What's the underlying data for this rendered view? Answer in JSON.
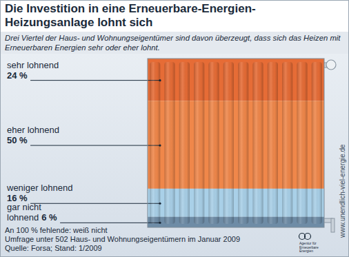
{
  "chart_data": {
    "type": "bar",
    "stacked": true,
    "data_labels": true,
    "tick_labels": false,
    "grid": false,
    "title": "Die Investition in eine Erneuerbare-Energien-Heizungsanlage lohnt sich",
    "subtitle": "Drei Viertel der Haus- und Wohnungseigentümer sind davon überzeugt, dass sich das Heizen mit Erneuerbaren Energien sehr oder eher lohnt.",
    "categories": [
      "sehr lohnend",
      "eher lohnend",
      "weniger lohnend",
      "gar nicht lohnend"
    ],
    "values": [
      24,
      50,
      16,
      6
    ],
    "value_labels": [
      "24 %",
      "50 %",
      "16 %",
      "6 %"
    ],
    "colors": [
      "#e66c36",
      "#f0874a",
      "#a9d0e8",
      "#6e8ca6"
    ],
    "notes": [
      "An 100 % fehlende: weiß nicht",
      "Umfrage unter 502 Haus- und Wohnungseigentümern im Januar 2009",
      "Quelle: Forsa; Stand: 1/2009"
    ],
    "side_text": "www.unendlich-viel-energie.de",
    "logo_text": [
      "Agentur für",
      "Erneuerbare",
      "Energien"
    ]
  }
}
